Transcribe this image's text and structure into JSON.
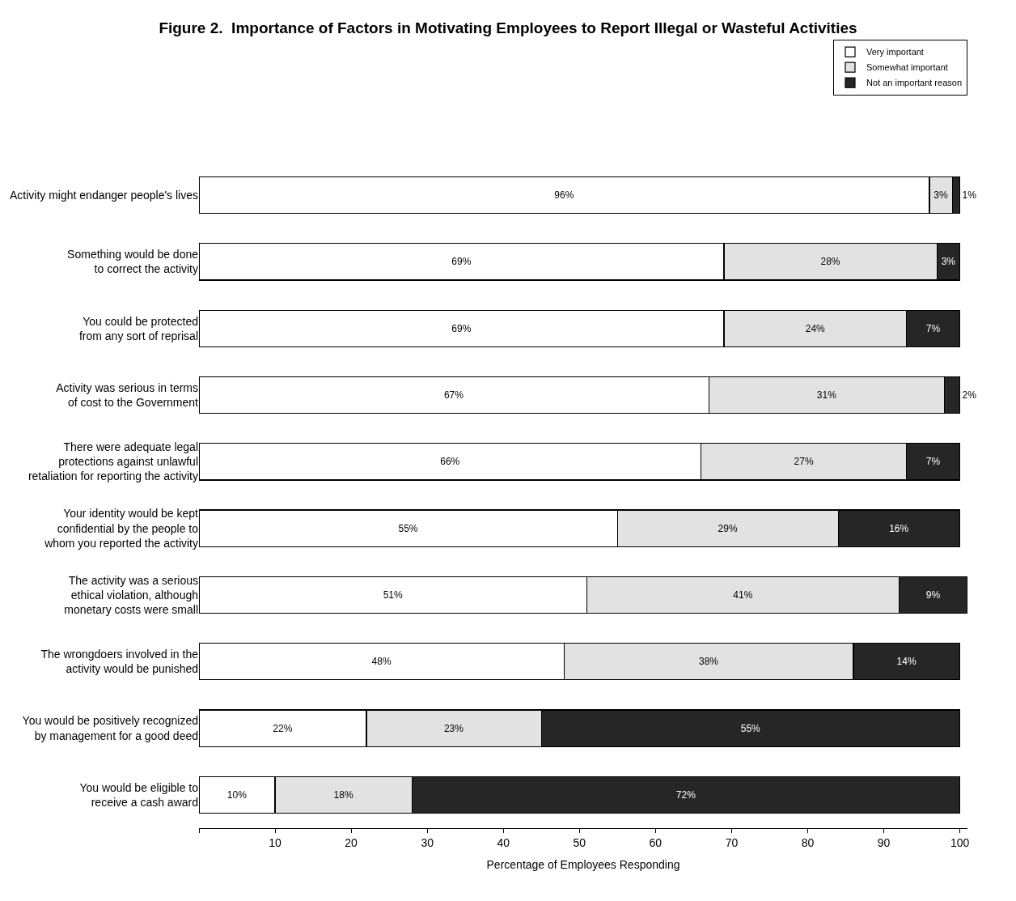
{
  "chart_data": {
    "type": "bar",
    "orientation": "horizontal",
    "stacked": true,
    "title": "Figure 2.  Importance of Factors in Motivating Employees to Report Illegal or Wasteful Activities",
    "xlabel": "Percentage of Employees Responding",
    "categories": [
      "Activity might endanger people's lives",
      "Something would be done\nto correct the activity",
      "You could be protected\nfrom any sort of reprisal",
      "Activity was serious in terms\nof cost to the Government",
      "There were adequate legal\nprotections against unlawful\nretaliation for reporting the activity",
      "Your identity would be kept\nconfidential by the people to\nwhom you reported the activity",
      "The activity was a serious\nethical violation, although\nmonetary costs were small",
      "The wrongdoers involved in the\nactivity would be punished",
      "You would be positively recognized\nby management for a good deed",
      "You would be eligible to\nreceive a cash award"
    ],
    "series": [
      {
        "name": "Very important",
        "color": "#ffffff",
        "values": [
          96,
          69,
          69,
          67,
          66,
          55,
          51,
          48,
          22,
          10
        ],
        "value_labels": [
          "96%",
          "69%",
          "69%",
          "67%",
          "66%",
          "55%",
          "51%",
          "48%",
          "22%",
          "10%"
        ]
      },
      {
        "name": "Somewhat important",
        "color": "#e2e2e2",
        "values": [
          3,
          28,
          24,
          31,
          27,
          29,
          41,
          38,
          23,
          18
        ],
        "value_labels": [
          "3%",
          "28%",
          "24%",
          "31%",
          "27%",
          "29%",
          "41%",
          "38%",
          "23%",
          "18%"
        ]
      },
      {
        "name": "Not an important reason",
        "color": "#262626",
        "values": [
          1,
          3,
          7,
          2,
          7,
          16,
          9,
          14,
          55,
          72
        ],
        "value_labels": [
          "1%",
          "3%",
          "7%",
          "2%",
          "7%",
          "16%",
          "9%",
          "14%",
          "55%",
          "72%"
        ]
      }
    ],
    "xlim": [
      0,
      101
    ],
    "xticks": [
      {
        "value": 0,
        "label": null
      },
      10,
      20,
      30,
      40,
      50,
      60,
      70,
      80,
      90,
      100
    ],
    "legend": "top right"
  }
}
